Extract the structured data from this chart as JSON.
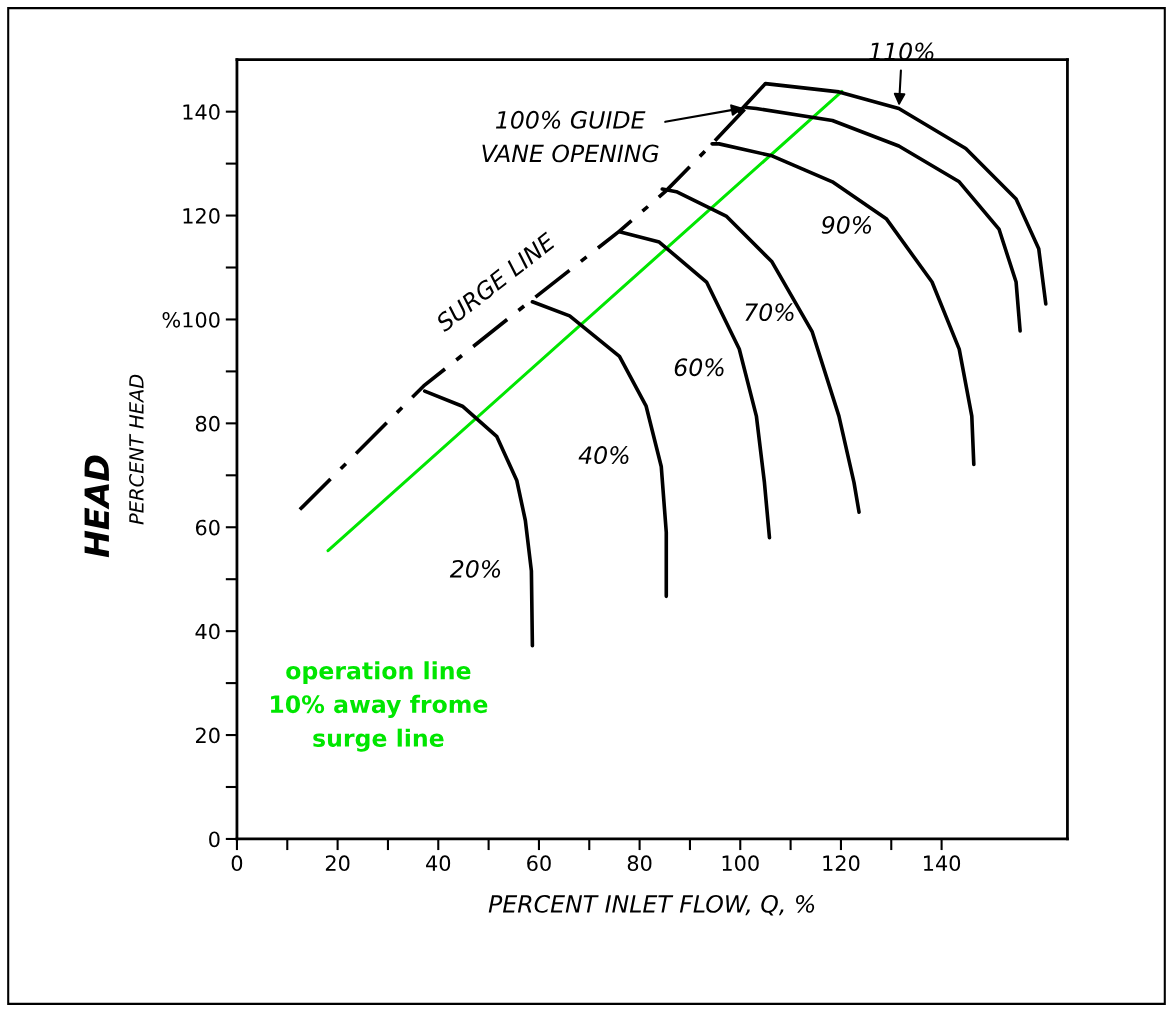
{
  "chart_data": {
    "type": "line",
    "xlabel": "PERCENT INLET FLOW, Q, %",
    "ylabel": "PERCENT HEAD",
    "xlim": [
      0,
      165
    ],
    "ylim": [
      0,
      150
    ],
    "xticks": [
      0,
      {
        "value": 10,
        "label": null
      },
      20,
      {
        "value": 30,
        "label": null
      },
      40,
      {
        "value": 50,
        "label": null
      },
      60,
      {
        "value": 70,
        "label": null
      },
      80,
      {
        "value": 90,
        "label": null
      },
      100,
      {
        "value": 110,
        "label": null
      },
      120,
      {
        "value": 130,
        "label": null
      },
      140
    ],
    "yticks": [
      0,
      {
        "value": 10,
        "label": null
      },
      20,
      {
        "value": 30,
        "label": null
      },
      40,
      {
        "value": 50,
        "label": null
      },
      60,
      {
        "value": 70,
        "label": null
      },
      80,
      {
        "value": 90,
        "label": null
      },
      {
        "value": 100,
        "label": "%100"
      },
      {
        "value": 110,
        "label": null
      },
      120,
      {
        "value": 130,
        "label": null
      },
      140
    ],
    "grid": false,
    "marker": "none",
    "series": [
      {
        "name": "SURGE LINE",
        "color": "#000000",
        "line_style": "dashed",
        "x": [
          12.5,
          37.1,
          58.1,
          76.0,
          85.3,
          94.4,
          101.2
        ],
        "values": [
          63.4,
          87.2,
          103.4,
          117.0,
          124.8,
          133.8,
          140.8
        ]
      },
      {
        "name": "operation line\n10% away frome\nsurge line",
        "color": "#00e600",
        "line_style": "solid",
        "x": [
          18.1,
          120.2
        ],
        "values": [
          55.5,
          143.9
        ]
      },
      {
        "name": "20%",
        "color": "#000000",
        "line_style": "solid",
        "x": [
          37.3,
          44.8,
          51.6,
          55.6,
          57.3,
          58.5,
          58.7
        ],
        "values": [
          86.2,
          83.3,
          77.5,
          69.0,
          61.3,
          51.6,
          37.2
        ]
      },
      {
        "name": "40%",
        "color": "#000000",
        "line_style": "solid",
        "x": [
          58.7,
          66.1,
          76.0,
          81.3,
          84.3,
          85.3,
          85.3
        ],
        "values": [
          103.4,
          100.7,
          92.9,
          83.3,
          71.7,
          59.0,
          46.7
        ]
      },
      {
        "name": "60%",
        "color": "#000000",
        "line_style": "solid",
        "x": [
          76.0,
          83.9,
          93.3,
          99.8,
          103.2,
          104.8,
          105.8
        ],
        "values": [
          116.9,
          114.9,
          107.2,
          94.3,
          81.4,
          68.6,
          58.0
        ]
      },
      {
        "name": "70%",
        "color": "#000000",
        "line_style": "solid",
        "x": [
          84.5,
          87.3,
          97.2,
          106.3,
          114.3,
          119.6,
          122.6,
          123.6
        ],
        "values": [
          125.1,
          124.6,
          119.9,
          111.1,
          97.6,
          81.4,
          68.6,
          62.9
        ]
      },
      {
        "name": "90%",
        "color": "#000000",
        "line_style": "solid",
        "x": [
          94.4,
          95.8,
          106.3,
          118.3,
          129.0,
          138.1,
          143.5,
          146.0,
          146.4
        ],
        "values": [
          133.8,
          133.8,
          131.5,
          126.5,
          119.4,
          107.2,
          94.3,
          81.4,
          72.1
        ]
      },
      {
        "color": "#000000",
        "line_style": "solid",
        "x": [
          101.2,
          103.2,
          118.3,
          131.5,
          143.5,
          151.4,
          154.8,
          155.6
        ],
        "values": [
          140.8,
          140.6,
          138.3,
          133.4,
          126.5,
          117.4,
          107.2,
          97.8
        ]
      },
      {
        "name": "110%",
        "color": "#000000",
        "line_style": "solid",
        "x": [
          99.8,
          105.0,
          119.6,
          131.5,
          144.8,
          154.8,
          159.3,
          160.7
        ],
        "values": [
          140.0,
          145.4,
          143.8,
          140.6,
          132.9,
          123.2,
          113.6,
          103.0
        ]
      }
    ],
    "annotations": [
      "HEAD",
      {
        "text": "100% GUIDE\nVANE OPENING",
        "x": 101.2,
        "y": 140.8
      }
    ]
  }
}
